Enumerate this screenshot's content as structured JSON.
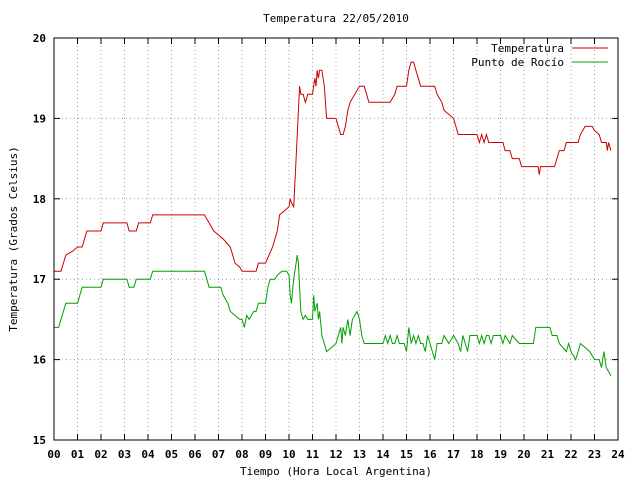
{
  "chart_data": {
    "type": "line",
    "title": "Temperatura 22/05/2010",
    "xlabel": "Tiempo (Hora Local Argentina)",
    "ylabel": "Temperatura (Grados Celsius)",
    "xlim": [
      0,
      24
    ],
    "ylim": [
      15,
      20
    ],
    "xticks": [
      "00",
      "01",
      "02",
      "03",
      "04",
      "05",
      "06",
      "07",
      "08",
      "09",
      "10",
      "11",
      "12",
      "13",
      "14",
      "15",
      "16",
      "17",
      "18",
      "19",
      "20",
      "21",
      "22",
      "23",
      "24"
    ],
    "yticks": [
      "15",
      "16",
      "17",
      "18",
      "19",
      "20"
    ],
    "grid": true,
    "legend_position": "top-right",
    "series": [
      {
        "name": "Temperatura",
        "color": "#cc0000",
        "points": [
          [
            0.0,
            17.1
          ],
          [
            0.3,
            17.1
          ],
          [
            0.4,
            17.2
          ],
          [
            0.5,
            17.3
          ],
          [
            0.8,
            17.35
          ],
          [
            1.0,
            17.4
          ],
          [
            1.2,
            17.4
          ],
          [
            1.3,
            17.5
          ],
          [
            1.4,
            17.6
          ],
          [
            2.0,
            17.6
          ],
          [
            2.1,
            17.7
          ],
          [
            3.1,
            17.7
          ],
          [
            3.2,
            17.6
          ],
          [
            3.5,
            17.6
          ],
          [
            3.6,
            17.7
          ],
          [
            4.1,
            17.7
          ],
          [
            4.2,
            17.8
          ],
          [
            6.4,
            17.8
          ],
          [
            6.6,
            17.7
          ],
          [
            6.8,
            17.6
          ],
          [
            7.2,
            17.5
          ],
          [
            7.5,
            17.4
          ],
          [
            7.7,
            17.2
          ],
          [
            7.9,
            17.15
          ],
          [
            8.0,
            17.1
          ],
          [
            8.6,
            17.1
          ],
          [
            8.7,
            17.2
          ],
          [
            9.0,
            17.2
          ],
          [
            9.3,
            17.4
          ],
          [
            9.5,
            17.6
          ],
          [
            9.6,
            17.8
          ],
          [
            9.8,
            17.85
          ],
          [
            10.0,
            17.9
          ],
          [
            10.05,
            18.0
          ],
          [
            10.1,
            17.95
          ],
          [
            10.2,
            17.9
          ],
          [
            10.3,
            18.5
          ],
          [
            10.4,
            19.1
          ],
          [
            10.45,
            19.4
          ],
          [
            10.5,
            19.3
          ],
          [
            10.6,
            19.3
          ],
          [
            10.7,
            19.2
          ],
          [
            10.8,
            19.3
          ],
          [
            11.0,
            19.3
          ],
          [
            11.1,
            19.5
          ],
          [
            11.15,
            19.4
          ],
          [
            11.2,
            19.6
          ],
          [
            11.25,
            19.5
          ],
          [
            11.3,
            19.6
          ],
          [
            11.4,
            19.6
          ],
          [
            11.5,
            19.4
          ],
          [
            11.6,
            19.0
          ],
          [
            12.0,
            19.0
          ],
          [
            12.1,
            18.9
          ],
          [
            12.2,
            18.8
          ],
          [
            12.3,
            18.8
          ],
          [
            12.4,
            18.9
          ],
          [
            12.5,
            19.1
          ],
          [
            12.6,
            19.2
          ],
          [
            12.8,
            19.3
          ],
          [
            13.0,
            19.4
          ],
          [
            13.2,
            19.4
          ],
          [
            13.3,
            19.3
          ],
          [
            13.4,
            19.2
          ],
          [
            14.3,
            19.2
          ],
          [
            14.5,
            19.3
          ],
          [
            14.6,
            19.4
          ],
          [
            15.0,
            19.4
          ],
          [
            15.1,
            19.6
          ],
          [
            15.2,
            19.7
          ],
          [
            15.3,
            19.7
          ],
          [
            15.4,
            19.6
          ],
          [
            15.5,
            19.5
          ],
          [
            15.6,
            19.4
          ],
          [
            16.2,
            19.4
          ],
          [
            16.3,
            19.3
          ],
          [
            16.5,
            19.2
          ],
          [
            16.6,
            19.1
          ],
          [
            16.8,
            19.05
          ],
          [
            17.0,
            19.0
          ],
          [
            17.1,
            18.9
          ],
          [
            17.2,
            18.8
          ],
          [
            18.0,
            18.8
          ],
          [
            18.1,
            18.7
          ],
          [
            18.2,
            18.8
          ],
          [
            18.3,
            18.7
          ],
          [
            18.4,
            18.8
          ],
          [
            18.5,
            18.7
          ],
          [
            19.1,
            18.7
          ],
          [
            19.2,
            18.6
          ],
          [
            19.4,
            18.6
          ],
          [
            19.5,
            18.5
          ],
          [
            19.8,
            18.5
          ],
          [
            19.9,
            18.4
          ],
          [
            20.6,
            18.4
          ],
          [
            20.65,
            18.3
          ],
          [
            20.7,
            18.4
          ],
          [
            21.3,
            18.4
          ],
          [
            21.4,
            18.5
          ],
          [
            21.5,
            18.6
          ],
          [
            21.7,
            18.6
          ],
          [
            21.8,
            18.7
          ],
          [
            22.3,
            18.7
          ],
          [
            22.4,
            18.8
          ],
          [
            22.6,
            18.9
          ],
          [
            22.9,
            18.9
          ],
          [
            23.0,
            18.85
          ],
          [
            23.2,
            18.8
          ],
          [
            23.3,
            18.7
          ],
          [
            23.5,
            18.7
          ],
          [
            23.55,
            18.6
          ],
          [
            23.6,
            18.7
          ],
          [
            23.7,
            18.6
          ]
        ]
      },
      {
        "name": "Punto de Rocío",
        "color": "#00a000",
        "points": [
          [
            0.0,
            16.4
          ],
          [
            0.2,
            16.4
          ],
          [
            0.3,
            16.5
          ],
          [
            0.4,
            16.6
          ],
          [
            0.5,
            16.7
          ],
          [
            1.0,
            16.7
          ],
          [
            1.1,
            16.8
          ],
          [
            1.2,
            16.9
          ],
          [
            2.0,
            16.9
          ],
          [
            2.1,
            17.0
          ],
          [
            3.1,
            17.0
          ],
          [
            3.2,
            16.9
          ],
          [
            3.4,
            16.9
          ],
          [
            3.5,
            17.0
          ],
          [
            4.1,
            17.0
          ],
          [
            4.2,
            17.1
          ],
          [
            6.4,
            17.1
          ],
          [
            6.5,
            17.0
          ],
          [
            6.6,
            16.9
          ],
          [
            7.1,
            16.9
          ],
          [
            7.2,
            16.8
          ],
          [
            7.4,
            16.7
          ],
          [
            7.5,
            16.6
          ],
          [
            7.7,
            16.55
          ],
          [
            7.9,
            16.5
          ],
          [
            8.0,
            16.5
          ],
          [
            8.1,
            16.4
          ],
          [
            8.2,
            16.55
          ],
          [
            8.3,
            16.5
          ],
          [
            8.5,
            16.6
          ],
          [
            8.6,
            16.6
          ],
          [
            8.7,
            16.7
          ],
          [
            9.0,
            16.7
          ],
          [
            9.1,
            16.9
          ],
          [
            9.2,
            17.0
          ],
          [
            9.4,
            17.0
          ],
          [
            9.5,
            17.05
          ],
          [
            9.7,
            17.1
          ],
          [
            9.9,
            17.1
          ],
          [
            10.0,
            17.05
          ],
          [
            10.05,
            16.8
          ],
          [
            10.1,
            16.7
          ],
          [
            10.2,
            17.0
          ],
          [
            10.3,
            17.2
          ],
          [
            10.35,
            17.3
          ],
          [
            10.4,
            17.2
          ],
          [
            10.5,
            16.6
          ],
          [
            10.6,
            16.5
          ],
          [
            10.7,
            16.55
          ],
          [
            10.8,
            16.5
          ],
          [
            11.0,
            16.5
          ],
          [
            11.05,
            16.8
          ],
          [
            11.1,
            16.6
          ],
          [
            11.2,
            16.7
          ],
          [
            11.25,
            16.5
          ],
          [
            11.3,
            16.6
          ],
          [
            11.4,
            16.3
          ],
          [
            11.5,
            16.2
          ],
          [
            11.6,
            16.1
          ],
          [
            12.0,
            16.2
          ],
          [
            12.1,
            16.3
          ],
          [
            12.2,
            16.4
          ],
          [
            12.25,
            16.2
          ],
          [
            12.3,
            16.4
          ],
          [
            12.4,
            16.3
          ],
          [
            12.5,
            16.5
          ],
          [
            12.6,
            16.3
          ],
          [
            12.7,
            16.5
          ],
          [
            12.8,
            16.55
          ],
          [
            12.9,
            16.6
          ],
          [
            13.0,
            16.5
          ],
          [
            13.1,
            16.3
          ],
          [
            13.2,
            16.2
          ],
          [
            14.0,
            16.2
          ],
          [
            14.1,
            16.3
          ],
          [
            14.2,
            16.2
          ],
          [
            14.3,
            16.3
          ],
          [
            14.4,
            16.2
          ],
          [
            14.5,
            16.2
          ],
          [
            14.6,
            16.3
          ],
          [
            14.7,
            16.2
          ],
          [
            14.9,
            16.2
          ],
          [
            15.0,
            16.1
          ],
          [
            15.1,
            16.4
          ],
          [
            15.2,
            16.2
          ],
          [
            15.3,
            16.3
          ],
          [
            15.4,
            16.2
          ],
          [
            15.5,
            16.3
          ],
          [
            15.6,
            16.2
          ],
          [
            15.7,
            16.2
          ],
          [
            15.8,
            16.1
          ],
          [
            15.9,
            16.3
          ],
          [
            16.0,
            16.2
          ],
          [
            16.2,
            16.0
          ],
          [
            16.3,
            16.2
          ],
          [
            16.5,
            16.2
          ],
          [
            16.6,
            16.3
          ],
          [
            16.8,
            16.2
          ],
          [
            17.0,
            16.3
          ],
          [
            17.2,
            16.2
          ],
          [
            17.3,
            16.1
          ],
          [
            17.4,
            16.3
          ],
          [
            17.5,
            16.2
          ],
          [
            17.6,
            16.1
          ],
          [
            17.7,
            16.3
          ],
          [
            18.0,
            16.3
          ],
          [
            18.1,
            16.2
          ],
          [
            18.2,
            16.3
          ],
          [
            18.3,
            16.2
          ],
          [
            18.4,
            16.3
          ],
          [
            18.5,
            16.3
          ],
          [
            18.6,
            16.2
          ],
          [
            18.7,
            16.3
          ],
          [
            19.0,
            16.3
          ],
          [
            19.1,
            16.2
          ],
          [
            19.2,
            16.3
          ],
          [
            19.4,
            16.2
          ],
          [
            19.5,
            16.3
          ],
          [
            19.8,
            16.2
          ],
          [
            20.4,
            16.2
          ],
          [
            20.5,
            16.4
          ],
          [
            21.1,
            16.4
          ],
          [
            21.2,
            16.3
          ],
          [
            21.4,
            16.3
          ],
          [
            21.5,
            16.2
          ],
          [
            21.8,
            16.1
          ],
          [
            21.9,
            16.2
          ],
          [
            22.0,
            16.1
          ],
          [
            22.2,
            16.0
          ],
          [
            22.3,
            16.1
          ],
          [
            22.4,
            16.2
          ],
          [
            22.8,
            16.1
          ],
          [
            23.0,
            16.0
          ],
          [
            23.2,
            16.0
          ],
          [
            23.3,
            15.9
          ],
          [
            23.4,
            16.1
          ],
          [
            23.5,
            15.9
          ],
          [
            23.6,
            15.85
          ],
          [
            23.7,
            15.8
          ]
        ]
      }
    ]
  }
}
